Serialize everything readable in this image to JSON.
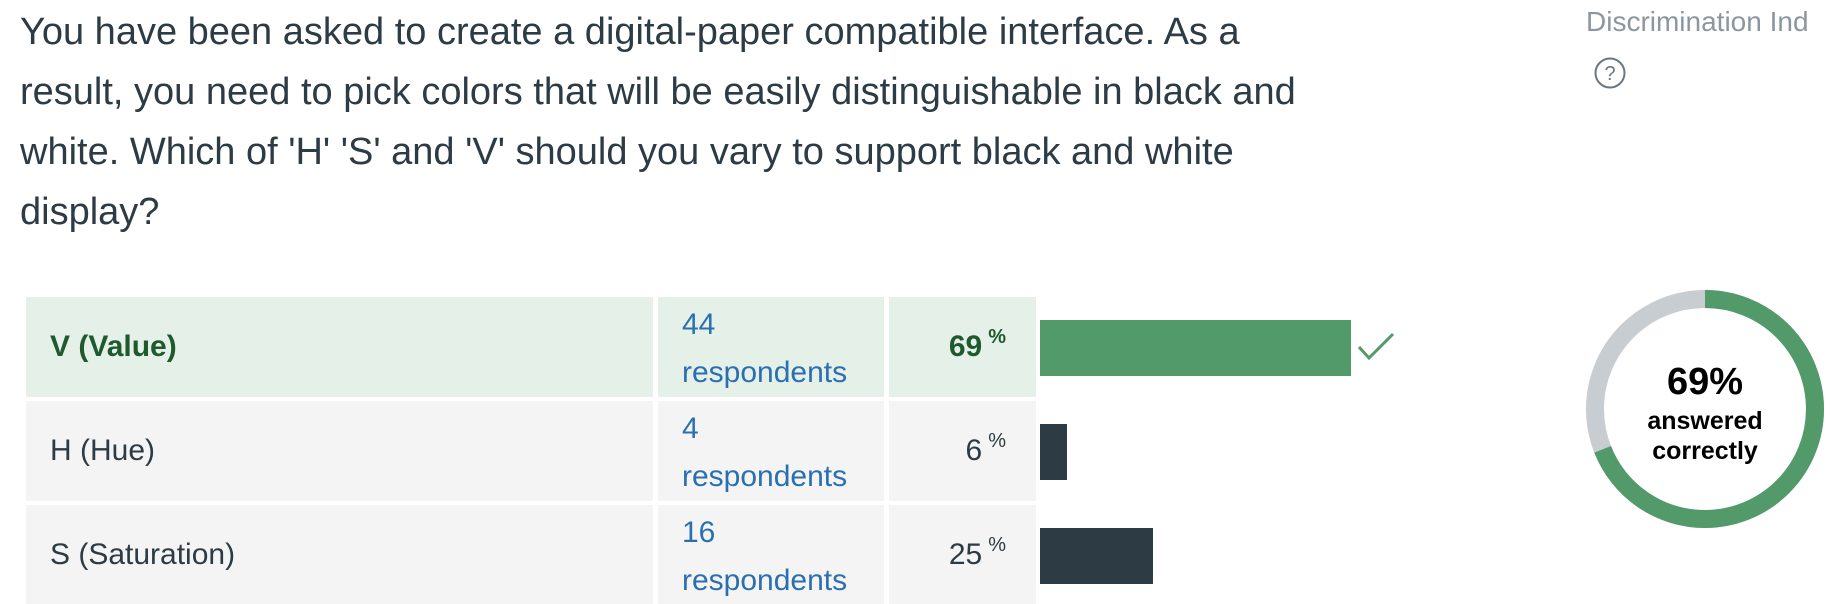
{
  "question": {
    "text": "You have been asked to create a digital-paper compatible interface. As a result, you need to pick colors that will be easily distinguishable in black and white. Which of 'H' 'S' and 'V' should you vary to support black and white display?"
  },
  "answers": [
    {
      "label": "V (Value)",
      "count": "44",
      "respondents_label": "respondents",
      "percent": "69",
      "percent_sign": "%",
      "correct": true,
      "value": 69
    },
    {
      "label": "H (Hue)",
      "count": "4",
      "respondents_label": "respondents",
      "percent": "6",
      "percent_sign": "%",
      "correct": false,
      "value": 6
    },
    {
      "label": "S (Saturation)",
      "count": "16",
      "respondents_label": "respondents",
      "percent": "25",
      "percent_sign": "%",
      "correct": false,
      "value": 25
    }
  ],
  "sidebar": {
    "discrimination_label": "Discrimination Ind",
    "help_icon": "help-circle-icon"
  },
  "summary": {
    "percent_label": "69%",
    "caption": "answered correctly",
    "correct_fraction": 0.69
  },
  "colors": {
    "correct_bar": "#529a6a",
    "other_bar": "#2d3b45",
    "donut_track": "#c7cdd1",
    "donut_fill": "#529a6a",
    "check": "#529a6a"
  }
}
